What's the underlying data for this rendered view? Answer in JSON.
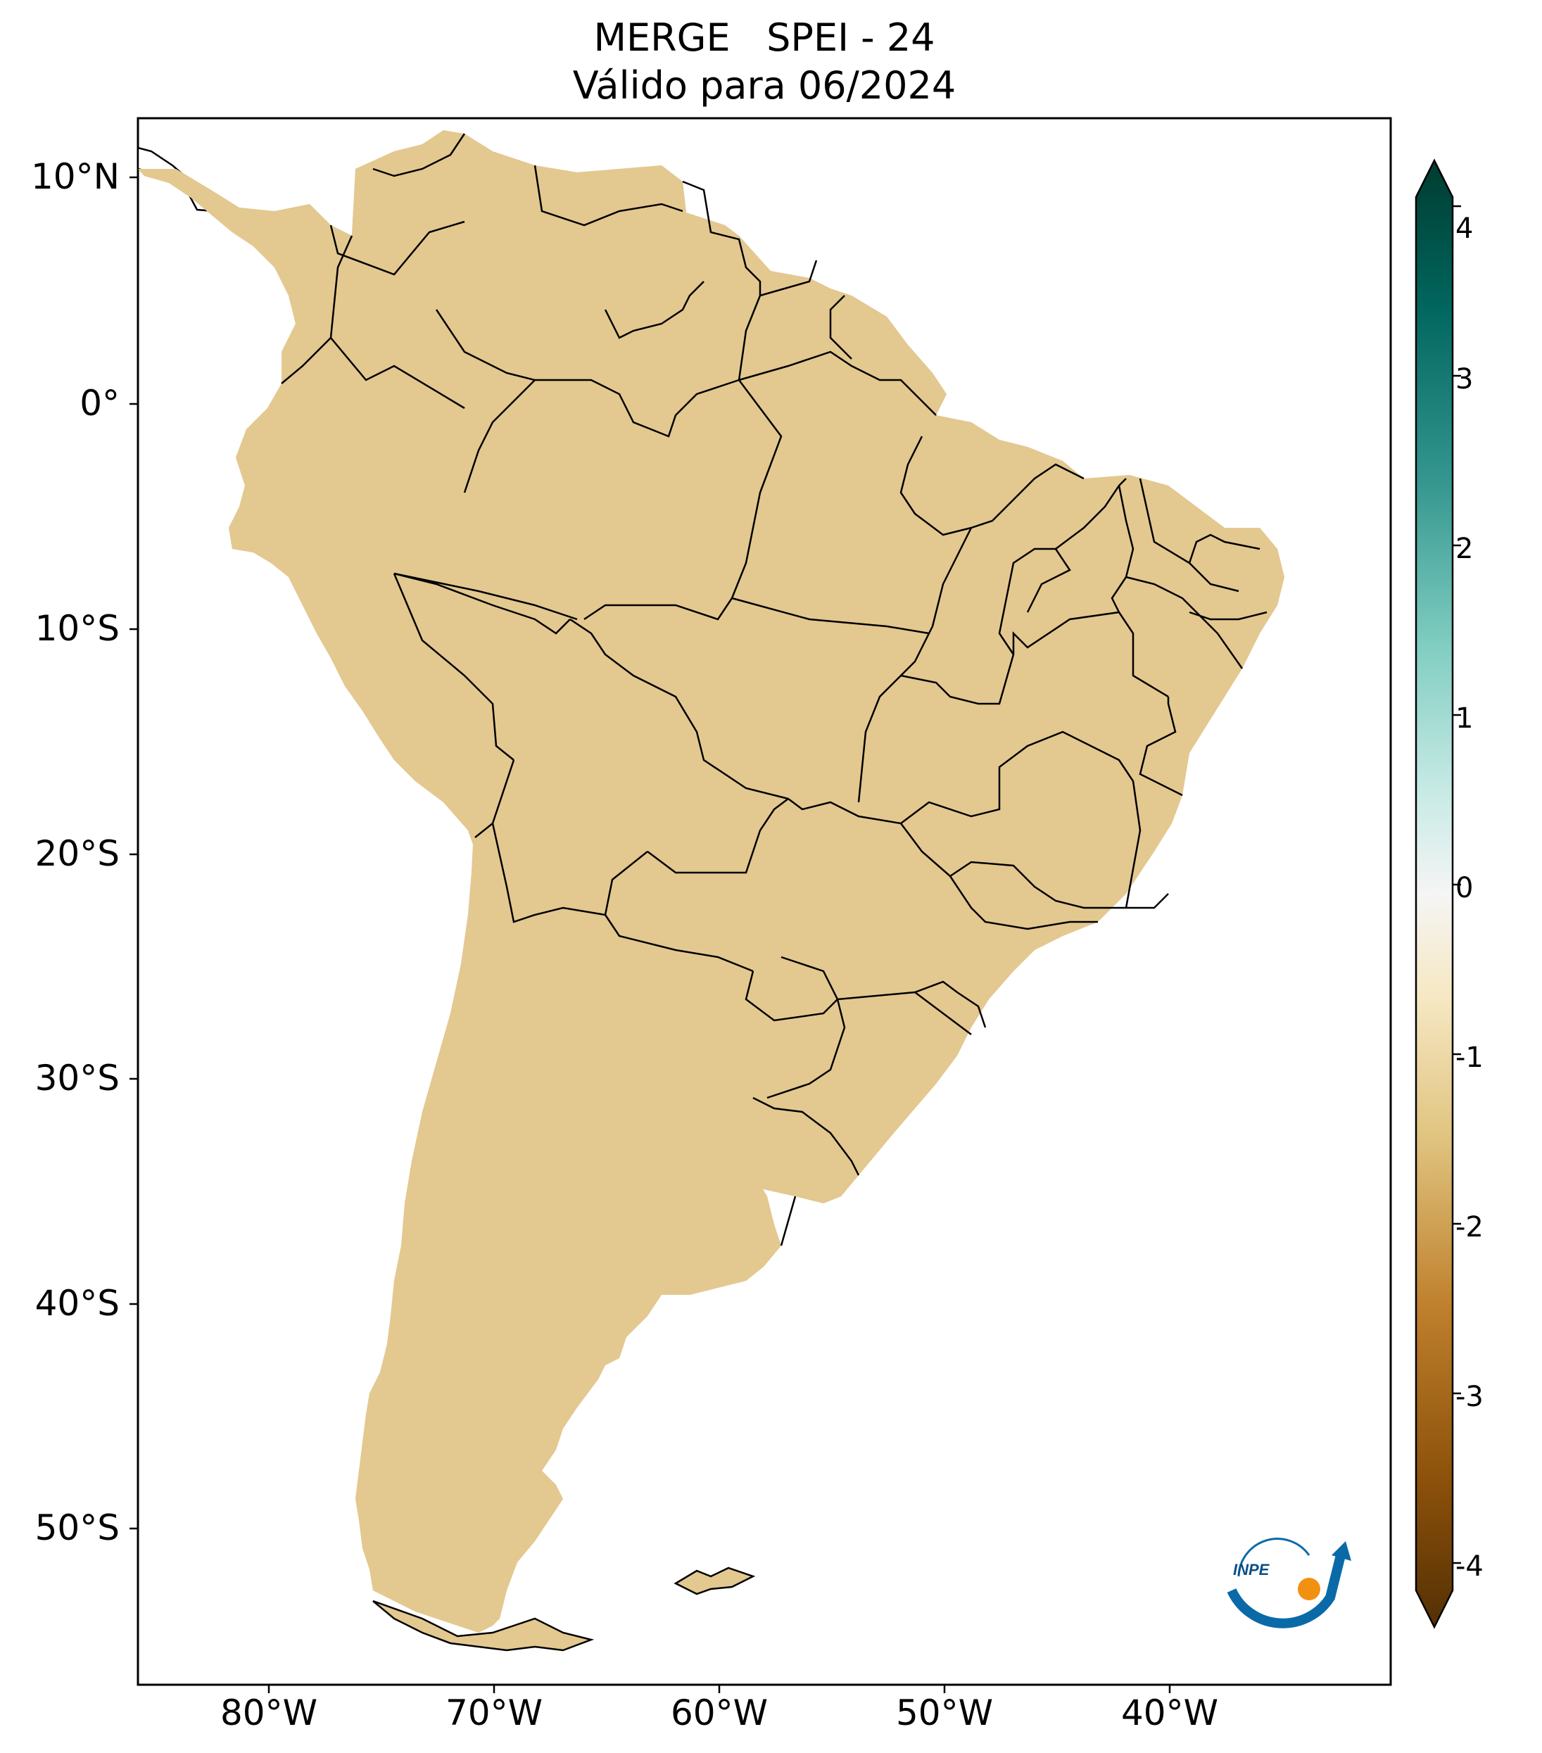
{
  "title": {
    "line1": "MERGE   SPEI - 24",
    "line2": "Válido para 06/2024"
  },
  "axes": {
    "lat_labels": [
      "10°N",
      "0°",
      "10°S",
      "20°S",
      "30°S",
      "40°S",
      "50°S"
    ],
    "lon_labels": [
      "80°W",
      "70°W",
      "60°W",
      "50°W",
      "40°W"
    ]
  },
  "colorbar": {
    "ticks": [
      "4",
      "3",
      "2",
      "1",
      "0",
      "-1",
      "-2",
      "-3",
      "-4"
    ],
    "colors": {
      "dry_extreme": "#543005",
      "dry_strong": "#8c510a",
      "dry_moderate": "#bf812d",
      "dry_mild": "#dfc27d",
      "dry_slight": "#f6e8c3",
      "normal": "#f5f5f5",
      "wet_slight": "#c7eae5",
      "wet_mild": "#80cdc1",
      "wet_moderate": "#35978f",
      "wet_strong": "#01665e",
      "wet_extreme": "#003c30"
    }
  },
  "logo": {
    "text": "INPE",
    "icon": "inpe-logo-icon"
  }
}
